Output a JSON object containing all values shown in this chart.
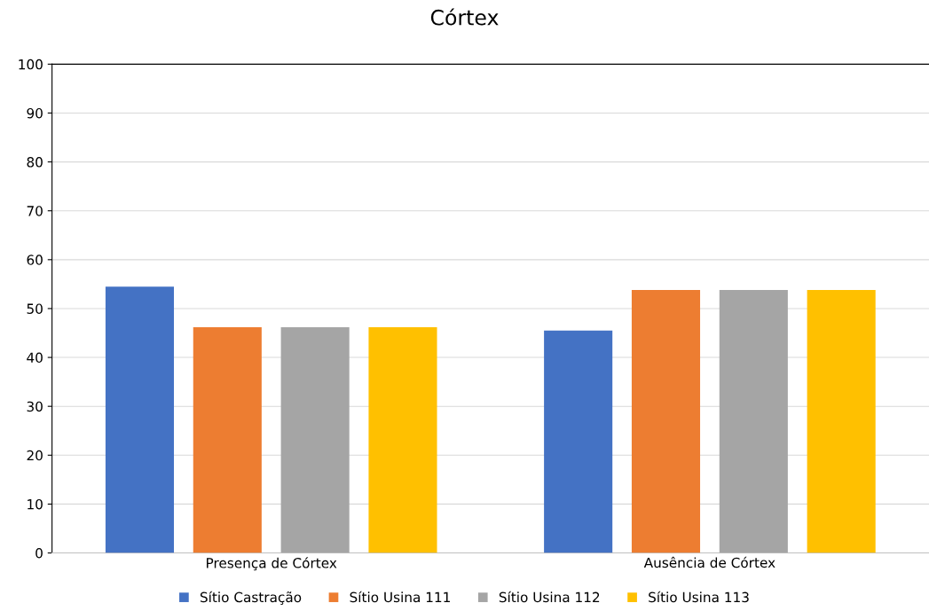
{
  "chart_data": {
    "type": "bar",
    "title": "Córtex",
    "categories": [
      "Presença de Córtex",
      "Ausência de Córtex"
    ],
    "series": [
      {
        "name": "Sítio Castração",
        "color": "#4472c4",
        "values": [
          54.5,
          45.5
        ]
      },
      {
        "name": "Sítio Usina 111",
        "color": "#ed7d31",
        "values": [
          46.2,
          53.8
        ]
      },
      {
        "name": "Sítio Usina 112",
        "color": "#a5a5a5",
        "values": [
          46.2,
          53.8
        ]
      },
      {
        "name": "Sítio Usina 113",
        "color": "#ffc000",
        "values": [
          46.2,
          53.8
        ]
      }
    ],
    "ylim": [
      0,
      100
    ],
    "yticks": [
      0,
      10,
      20,
      30,
      40,
      50,
      60,
      70,
      80,
      90,
      100
    ],
    "grid": "y",
    "legend": "bottom"
  }
}
